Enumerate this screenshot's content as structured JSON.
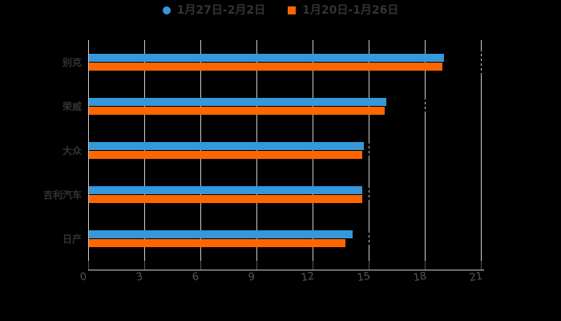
{
  "legend": {
    "items": [
      {
        "label": "1月27日-2月2日",
        "color": "#3498db",
        "shape": "circle"
      },
      {
        "label": "1月20日-1月26日",
        "color": "#ff6600",
        "shape": "square"
      }
    ]
  },
  "chart_data": {
    "type": "bar",
    "orientation": "horizontal",
    "title": "",
    "categories": [
      "别克",
      "荣威",
      "大众",
      "吉利汽车",
      "日产"
    ],
    "series": [
      {
        "name": "1月27日-2月2日",
        "color": "#3498db",
        "marker": "circle",
        "values": [
          19.0,
          15.9,
          14.7,
          14.6,
          14.1
        ]
      },
      {
        "name": "1月20日-1月26日",
        "color": "#ff6600",
        "marker": "square",
        "values": [
          18.9,
          15.8,
          14.6,
          14.6,
          13.7
        ]
      }
    ],
    "xlim": [
      0,
      21
    ],
    "xticks": [
      0,
      3,
      6,
      9,
      12,
      15,
      18,
      21
    ],
    "xlabel": "",
    "ylabel": "",
    "grid": true,
    "legend_position": "top"
  },
  "colors": {
    "background": "#000000",
    "gridline": "#cccccc",
    "axis_line": "#cccccc",
    "tick_mark": "#555555",
    "tick_label": "#555555",
    "category_label": "#333333",
    "legend_text": "#333333"
  },
  "artifacts": {
    "gridline_dash_marks": [
      {
        "tick": 21,
        "row": 0,
        "len": 28
      },
      {
        "tick": 18,
        "row": 1,
        "len": 18
      },
      {
        "tick": 15,
        "row": 2,
        "len": 18
      },
      {
        "tick": 15,
        "row": 3,
        "len": 18
      },
      {
        "tick": 15,
        "row": 4,
        "len": 16
      }
    ]
  }
}
